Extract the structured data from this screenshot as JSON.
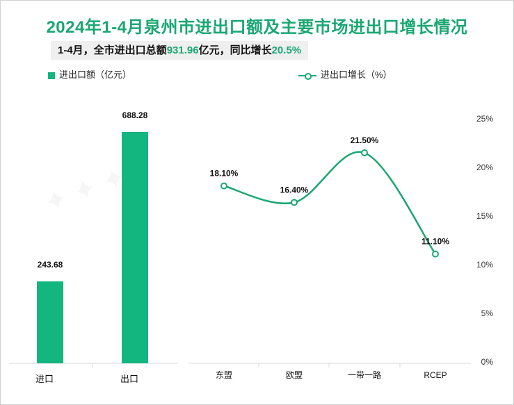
{
  "header": {
    "title": "2024年1-4月泉州市进出口额及主要市场进出口增长情况",
    "subtitle_prefix": "1-4月，全市进出口总额",
    "subtitle_total": "931.96",
    "subtitle_mid": "亿元，同比增长",
    "subtitle_growth": "20.5%"
  },
  "chart_data": [
    {
      "type": "bar",
      "categories": [
        "进口",
        "出口"
      ],
      "series": [
        {
          "name": "进出口额（亿元）",
          "values": [
            243.68,
            688.28
          ]
        }
      ],
      "data_labels": [
        "243.68",
        "688.28"
      ],
      "color": "#12b67e"
    },
    {
      "type": "line",
      "categories": [
        "东盟",
        "欧盟",
        "一带一路",
        "RCEP"
      ],
      "series": [
        {
          "name": "进出口增长（%）",
          "values": [
            18.1,
            16.4,
            21.5,
            11.1
          ]
        }
      ],
      "data_labels": [
        "18.10%",
        "16.40%",
        "21.50%",
        "11.10%"
      ],
      "ylim": [
        0,
        25
      ],
      "yticks": [
        "0%",
        "5%",
        "10%",
        "15%",
        "20%",
        "25%"
      ],
      "y_axis_side": "right",
      "color": "#1aa772"
    }
  ]
}
